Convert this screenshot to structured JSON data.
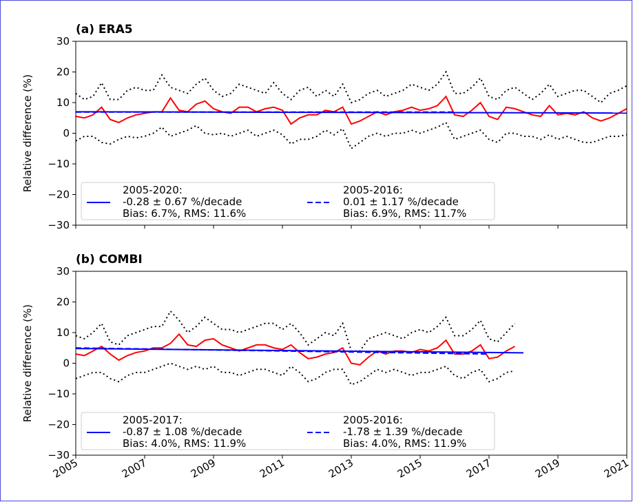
{
  "chart_data": [
    {
      "type": "line",
      "title": "(a) ERA5",
      "ylabel": "Relative difference (%)",
      "xlim": [
        2005,
        2021
      ],
      "xticks": [
        2005,
        2007,
        2009,
        2011,
        2013,
        2015,
        2017,
        2019,
        2021
      ],
      "show_xtick_labels": false,
      "ylim": [
        -30,
        30
      ],
      "yticks": [
        {
          "value": -30,
          "label": "−30"
        },
        {
          "value": -20,
          "label": "−20"
        },
        {
          "value": -10,
          "label": "−10"
        },
        0,
        10,
        20,
        30
      ],
      "legend": "lower left",
      "series": [
        {
          "color": "#ff0000",
          "style": "solid",
          "x": [
            2005,
            2005.25,
            2005.5,
            2005.75,
            2006,
            2006.25,
            2006.5,
            2006.75,
            2007,
            2007.25,
            2007.5,
            2007.75,
            2008,
            2008.25,
            2008.5,
            2008.75,
            2009,
            2009.25,
            2009.5,
            2009.75,
            2010,
            2010.25,
            2010.5,
            2010.75,
            2011,
            2011.25,
            2011.5,
            2011.75,
            2012,
            2012.25,
            2012.5,
            2012.75,
            2013,
            2013.25,
            2013.5,
            2013.75,
            2014,
            2014.25,
            2014.5,
            2014.75,
            2015,
            2015.25,
            2015.5,
            2015.75,
            2016,
            2016.25,
            2016.5,
            2016.75,
            2017,
            2017.25,
            2017.5,
            2017.75,
            2018,
            2018.25,
            2018.5,
            2018.75,
            2019,
            2019.25,
            2019.5,
            2019.75,
            2020,
            2020.25,
            2020.5,
            2020.75,
            2021
          ],
          "values": [
            5.5,
            5,
            6,
            8.5,
            4.5,
            3.5,
            5,
            6,
            6.5,
            7,
            7,
            11.5,
            7.5,
            7,
            9.5,
            10.5,
            8,
            7,
            6.5,
            8.5,
            8.5,
            7,
            8,
            8.5,
            7.5,
            3,
            5,
            6,
            6,
            7.5,
            7,
            8.5,
            3,
            4,
            5.5,
            7,
            6,
            7,
            7.5,
            8.5,
            7.5,
            8,
            9,
            12,
            6,
            5.5,
            7.5,
            10,
            5.5,
            4.5,
            8.5,
            8,
            7,
            6,
            5.5,
            9,
            6,
            6.5,
            6,
            7,
            5,
            4,
            5,
            6.5,
            8
          ]
        },
        {
          "color": "#000000",
          "style": "dotted",
          "x": [
            2005,
            2005.25,
            2005.5,
            2005.75,
            2006,
            2006.25,
            2006.5,
            2006.75,
            2007,
            2007.25,
            2007.5,
            2007.75,
            2008,
            2008.25,
            2008.5,
            2008.75,
            2009,
            2009.25,
            2009.5,
            2009.75,
            2010,
            2010.25,
            2010.5,
            2010.75,
            2011,
            2011.25,
            2011.5,
            2011.75,
            2012,
            2012.25,
            2012.5,
            2012.75,
            2013,
            2013.25,
            2013.5,
            2013.75,
            2014,
            2014.25,
            2014.5,
            2014.75,
            2015,
            2015.25,
            2015.5,
            2015.75,
            2016,
            2016.25,
            2016.5,
            2016.75,
            2017,
            2017.25,
            2017.5,
            2017.75,
            2018,
            2018.25,
            2018.5,
            2018.75,
            2019,
            2019.25,
            2019.5,
            2019.75,
            2020,
            2020.25,
            2020.5,
            2020.75,
            2021
          ],
          "values": [
            13,
            11,
            12,
            16.5,
            11,
            11,
            14,
            15,
            14,
            14,
            19,
            15,
            14,
            13,
            16,
            18,
            14,
            12,
            13,
            16,
            15,
            14,
            13,
            16.5,
            13,
            11,
            14,
            15,
            12,
            14,
            12,
            16,
            10,
            11,
            13,
            14,
            12,
            13,
            14,
            16,
            15,
            14,
            16,
            20,
            13,
            13,
            15,
            18,
            12,
            11,
            14,
            15,
            13,
            11,
            13,
            16,
            12,
            13,
            14,
            14,
            12,
            10,
            13,
            14,
            15.5
          ]
        },
        {
          "color": "#000000",
          "style": "dotted",
          "x": [
            2005,
            2005.25,
            2005.5,
            2005.75,
            2006,
            2006.25,
            2006.5,
            2006.75,
            2007,
            2007.25,
            2007.5,
            2007.75,
            2008,
            2008.25,
            2008.5,
            2008.75,
            2009,
            2009.25,
            2009.5,
            2009.75,
            2010,
            2010.25,
            2010.5,
            2010.75,
            2011,
            2011.25,
            2011.5,
            2011.75,
            2012,
            2012.25,
            2012.5,
            2012.75,
            2013,
            2013.25,
            2013.5,
            2013.75,
            2014,
            2014.25,
            2014.5,
            2014.75,
            2015,
            2015.25,
            2015.5,
            2015.75,
            2016,
            2016.25,
            2016.5,
            2016.75,
            2017,
            2017.25,
            2017.5,
            2017.75,
            2018,
            2018.25,
            2018.5,
            2018.75,
            2019,
            2019.25,
            2019.5,
            2019.75,
            2020,
            2020.25,
            2020.5,
            2020.75,
            2021
          ],
          "values": [
            -2.5,
            -1,
            -1,
            -3,
            -3.5,
            -2,
            -1,
            -1.5,
            -1,
            0,
            2,
            -1,
            0,
            1,
            2.5,
            0,
            -0.5,
            0,
            -1,
            0,
            1,
            -1,
            0,
            1,
            -0.5,
            -3.5,
            -2,
            -2,
            -1,
            1,
            -0.5,
            1.5,
            -5,
            -3,
            -1,
            0,
            -1,
            0,
            0,
            1,
            0,
            1,
            2,
            3.5,
            -2,
            -1,
            0,
            1,
            -2,
            -3,
            0,
            0,
            -1,
            -1,
            -2,
            -0.5,
            -2,
            -1,
            -2,
            -3,
            -3,
            -2,
            -1,
            -1,
            -0.5
          ]
        },
        {
          "name": "2005-2020:\n-0.28 ± 0.67 %/decade\nBias: 6.7%, RMS: 11.6%",
          "color": "#0000ff",
          "style": "solid",
          "x": [
            2005,
            2021
          ],
          "values": [
            7.0,
            6.6
          ]
        },
        {
          "name": "2005-2016:\n0.01 ± 1.17 %/decade\nBias: 6.9%, RMS: 11.7%",
          "color": "#0000ff",
          "style": "dashed",
          "x": [
            2005,
            2016
          ],
          "values": [
            6.9,
            6.9
          ]
        }
      ]
    },
    {
      "type": "line",
      "title": "(b) COMBI",
      "ylabel": "Relative difference (%)",
      "xlim": [
        2005,
        2021
      ],
      "xticks": [
        2005,
        2007,
        2009,
        2011,
        2013,
        2015,
        2017,
        2019,
        2021
      ],
      "show_xtick_labels": true,
      "ylim": [
        -30,
        30
      ],
      "yticks": [
        {
          "value": -30,
          "label": "−30"
        },
        {
          "value": -20,
          "label": "−20"
        },
        {
          "value": -10,
          "label": "−10"
        },
        0,
        10,
        20,
        30
      ],
      "legend": "lower left",
      "series": [
        {
          "color": "#ff0000",
          "style": "solid",
          "x": [
            2005,
            2005.25,
            2005.5,
            2005.75,
            2006,
            2006.25,
            2006.5,
            2006.75,
            2007,
            2007.25,
            2007.5,
            2007.75,
            2008,
            2008.25,
            2008.5,
            2008.75,
            2009,
            2009.25,
            2009.5,
            2009.75,
            2010,
            2010.25,
            2010.5,
            2010.75,
            2011,
            2011.25,
            2011.5,
            2011.75,
            2012,
            2012.25,
            2012.5,
            2012.75,
            2013,
            2013.25,
            2013.5,
            2013.75,
            2014,
            2014.25,
            2014.5,
            2014.75,
            2015,
            2015.25,
            2015.5,
            2015.75,
            2016,
            2016.25,
            2016.5,
            2016.75,
            2017,
            2017.25,
            2017.5,
            2017.75
          ],
          "values": [
            3,
            2.5,
            4,
            5.5,
            3,
            1,
            2.5,
            3.5,
            4,
            5,
            5,
            6.5,
            9.5,
            6,
            5.5,
            7.5,
            8,
            6,
            5,
            4,
            5,
            6,
            6,
            5,
            4.5,
            6,
            3.5,
            1.5,
            2,
            3,
            3.5,
            5,
            0,
            -0.5,
            2,
            4,
            3,
            4,
            4,
            3.5,
            4.5,
            4,
            5,
            7.5,
            3,
            3,
            4,
            6,
            1.5,
            2,
            4,
            5.5
          ]
        },
        {
          "color": "#000000",
          "style": "dotted",
          "x": [
            2005,
            2005.25,
            2005.5,
            2005.75,
            2006,
            2006.25,
            2006.5,
            2006.75,
            2007,
            2007.25,
            2007.5,
            2007.75,
            2008,
            2008.25,
            2008.5,
            2008.75,
            2009,
            2009.25,
            2009.5,
            2009.75,
            2010,
            2010.25,
            2010.5,
            2010.75,
            2011,
            2011.25,
            2011.5,
            2011.75,
            2012,
            2012.25,
            2012.5,
            2012.75,
            2013,
            2013.25,
            2013.5,
            2013.75,
            2014,
            2014.25,
            2014.5,
            2014.75,
            2015,
            2015.25,
            2015.5,
            2015.75,
            2016,
            2016.25,
            2016.5,
            2016.75,
            2017,
            2017.25,
            2017.5,
            2017.75
          ],
          "values": [
            9,
            8,
            10,
            13,
            7,
            6,
            9,
            10,
            11,
            12,
            12,
            17,
            14,
            10,
            12,
            15,
            13,
            11,
            11,
            10,
            11,
            12,
            13,
            13,
            11,
            13,
            10,
            6,
            8,
            10,
            9,
            13,
            4,
            4,
            8,
            9,
            10,
            9,
            8,
            10,
            11,
            10,
            12,
            15,
            9,
            9,
            11,
            14,
            8,
            7,
            10,
            13
          ]
        },
        {
          "color": "#000000",
          "style": "dotted",
          "x": [
            2005,
            2005.25,
            2005.5,
            2005.75,
            2006,
            2006.25,
            2006.5,
            2006.75,
            2007,
            2007.25,
            2007.5,
            2007.75,
            2008,
            2008.25,
            2008.5,
            2008.75,
            2009,
            2009.25,
            2009.5,
            2009.75,
            2010,
            2010.25,
            2010.5,
            2010.75,
            2011,
            2011.25,
            2011.5,
            2011.75,
            2012,
            2012.25,
            2012.5,
            2012.75,
            2013,
            2013.25,
            2013.5,
            2013.75,
            2014,
            2014.25,
            2014.5,
            2014.75,
            2015,
            2015.25,
            2015.5,
            2015.75,
            2016,
            2016.25,
            2016.5,
            2016.75,
            2017,
            2017.25,
            2017.5,
            2017.75
          ],
          "values": [
            -5,
            -4,
            -3,
            -3,
            -5,
            -6,
            -4,
            -3,
            -3,
            -2,
            -1,
            0,
            -1,
            -2,
            -1,
            -2,
            -1,
            -3,
            -3,
            -4,
            -3,
            -2,
            -2,
            -3,
            -4,
            -1,
            -3,
            -6,
            -5,
            -3,
            -2,
            -2,
            -7,
            -6,
            -4,
            -2,
            -3,
            -2,
            -3,
            -4,
            -3,
            -3,
            -2,
            -1,
            -4,
            -5,
            -3,
            -2,
            -6,
            -5,
            -3,
            -2.5
          ]
        },
        {
          "name": "2005-2017:\n-0.87 ± 1.08 %/decade\nBias: 4.0%, RMS: 11.9%",
          "color": "#0000ff",
          "style": "solid",
          "x": [
            2005,
            2018
          ],
          "values": [
            4.8,
            3.4
          ]
        },
        {
          "name": "2005-2016:\n-1.78 ± 1.39 %/decade\nBias: 4.0%, RMS: 11.9%",
          "color": "#0000ff",
          "style": "dashed",
          "x": [
            2005,
            2017
          ],
          "values": [
            5.0,
            3.0
          ]
        }
      ]
    }
  ]
}
